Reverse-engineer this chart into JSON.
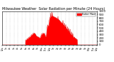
{
  "title": "Milwaukee Weather Solar Radiation per Minute (24 Hours)",
  "title_fontsize": 3.5,
  "fill_color": "#ff0000",
  "line_color": "#cc0000",
  "background_color": "#ffffff",
  "grid_color": "#999999",
  "legend_label": "Solar Rad",
  "legend_color": "#ff0000",
  "ylim": [
    0,
    1000
  ],
  "xlim": [
    0,
    1440
  ],
  "ytick_fontsize": 2.8,
  "xtick_fontsize": 2.2,
  "num_points": 1440
}
